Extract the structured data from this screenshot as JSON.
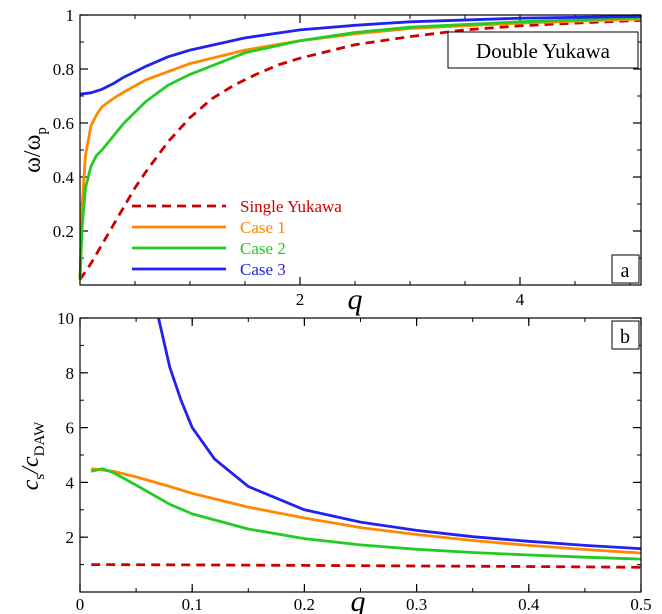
{
  "chart_data": [
    {
      "type": "line",
      "panel_label": "a",
      "annotation": "Double Yukawa",
      "xlabel": "q",
      "ylabel_main": "ω/ω",
      "ylabel_sub": "p",
      "xlim": [
        0,
        5.1
      ],
      "ylim": [
        0,
        1
      ],
      "xticks": [
        {
          "v": 2,
          "label": "2"
        },
        {
          "v": 4,
          "label": "4"
        }
      ],
      "yticks": [
        {
          "v": 0.2,
          "label": "0.2"
        },
        {
          "v": 0.4,
          "label": "0.4"
        },
        {
          "v": 0.6,
          "label": "0.6"
        },
        {
          "v": 0.8,
          "label": "0.8"
        },
        {
          "v": 1,
          "label": "1"
        }
      ],
      "legend_position": "lower-left",
      "series": [
        {
          "name": "Single Yukawa",
          "color": "#cc0000",
          "dash": "dashed",
          "x": [
            0,
            0.05,
            0.1,
            0.2,
            0.3,
            0.4,
            0.5,
            0.6,
            0.8,
            1.0,
            1.2,
            1.4,
            1.6,
            1.8,
            2.0,
            2.5,
            3.0,
            3.5,
            4.0,
            4.5,
            5.1
          ],
          "y": [
            0.02,
            0.05,
            0.08,
            0.15,
            0.22,
            0.29,
            0.36,
            0.42,
            0.53,
            0.62,
            0.69,
            0.74,
            0.78,
            0.815,
            0.84,
            0.89,
            0.92,
            0.945,
            0.96,
            0.97,
            0.98
          ]
        },
        {
          "name": "Case 1",
          "color": "#ff8800",
          "dash": "solid",
          "x": [
            0,
            0.02,
            0.05,
            0.1,
            0.15,
            0.2,
            0.3,
            0.4,
            0.6,
            0.8,
            1.0,
            1.5,
            2.0,
            2.5,
            3.0,
            4.0,
            5.1
          ],
          "y": [
            0.02,
            0.3,
            0.48,
            0.59,
            0.63,
            0.66,
            0.69,
            0.715,
            0.76,
            0.79,
            0.82,
            0.87,
            0.905,
            0.93,
            0.95,
            0.97,
            0.985
          ]
        },
        {
          "name": "Case 2",
          "color": "#22cc22",
          "dash": "solid",
          "x": [
            0,
            0.02,
            0.05,
            0.1,
            0.15,
            0.2,
            0.3,
            0.4,
            0.6,
            0.8,
            1.0,
            1.5,
            2.0,
            2.5,
            3.0,
            4.0,
            5.1
          ],
          "y": [
            0.02,
            0.22,
            0.36,
            0.44,
            0.48,
            0.5,
            0.55,
            0.6,
            0.68,
            0.74,
            0.78,
            0.86,
            0.905,
            0.935,
            0.955,
            0.975,
            0.99
          ]
        },
        {
          "name": "Case 3",
          "color": "#2222ee",
          "dash": "solid",
          "x": [
            0,
            0.1,
            0.2,
            0.3,
            0.4,
            0.6,
            0.8,
            1.0,
            1.5,
            2.0,
            2.5,
            3.0,
            4.0,
            5.1
          ],
          "y": [
            0.707,
            0.712,
            0.725,
            0.745,
            0.77,
            0.81,
            0.845,
            0.87,
            0.915,
            0.945,
            0.962,
            0.975,
            0.988,
            0.995
          ]
        }
      ]
    },
    {
      "type": "line",
      "panel_label": "b",
      "xlabel": "q",
      "ylabel_main": "c",
      "ylabel_sub1": "s",
      "ylabel_mid": "/c",
      "ylabel_sub2": "DAW",
      "xlim": [
        0,
        0.5
      ],
      "ylim": [
        0,
        10
      ],
      "xticks": [
        {
          "v": 0,
          "label": "0"
        },
        {
          "v": 0.1,
          "label": "0.1"
        },
        {
          "v": 0.2,
          "label": "0.2"
        },
        {
          "v": 0.3,
          "label": "0.3"
        },
        {
          "v": 0.4,
          "label": "0.4"
        },
        {
          "v": 0.5,
          "label": "0.5"
        }
      ],
      "yticks": [
        {
          "v": 2,
          "label": "2"
        },
        {
          "v": 4,
          "label": "4"
        },
        {
          "v": 6,
          "label": "6"
        },
        {
          "v": 8,
          "label": "8"
        },
        {
          "v": 10,
          "label": "10"
        }
      ],
      "series": [
        {
          "name": "Single Yukawa",
          "color": "#cc0000",
          "dash": "dashed",
          "x": [
            0.01,
            0.1,
            0.2,
            0.3,
            0.4,
            0.5
          ],
          "y": [
            1.0,
            0.99,
            0.97,
            0.95,
            0.93,
            0.9
          ]
        },
        {
          "name": "Case 1",
          "color": "#ff8800",
          "dash": "solid",
          "x": [
            0.01,
            0.03,
            0.05,
            0.08,
            0.1,
            0.15,
            0.2,
            0.25,
            0.3,
            0.35,
            0.4,
            0.45,
            0.5
          ],
          "y": [
            4.5,
            4.4,
            4.2,
            3.85,
            3.6,
            3.1,
            2.7,
            2.35,
            2.1,
            1.88,
            1.7,
            1.55,
            1.42
          ]
        },
        {
          "name": "Case 2",
          "color": "#22cc22",
          "dash": "solid",
          "x": [
            0.01,
            0.02,
            0.03,
            0.05,
            0.08,
            0.1,
            0.15,
            0.2,
            0.25,
            0.3,
            0.35,
            0.4,
            0.45,
            0.5
          ],
          "y": [
            4.4,
            4.5,
            4.35,
            3.9,
            3.2,
            2.85,
            2.3,
            1.95,
            1.72,
            1.56,
            1.44,
            1.35,
            1.27,
            1.2
          ]
        },
        {
          "name": "Case 3",
          "color": "#2222ee",
          "dash": "solid",
          "x": [
            0.07,
            0.08,
            0.09,
            0.1,
            0.12,
            0.15,
            0.2,
            0.25,
            0.3,
            0.35,
            0.4,
            0.45,
            0.5
          ],
          "y": [
            10.0,
            8.2,
            7.0,
            6.0,
            4.85,
            3.85,
            3.0,
            2.55,
            2.25,
            2.02,
            1.85,
            1.7,
            1.58
          ]
        }
      ]
    }
  ]
}
